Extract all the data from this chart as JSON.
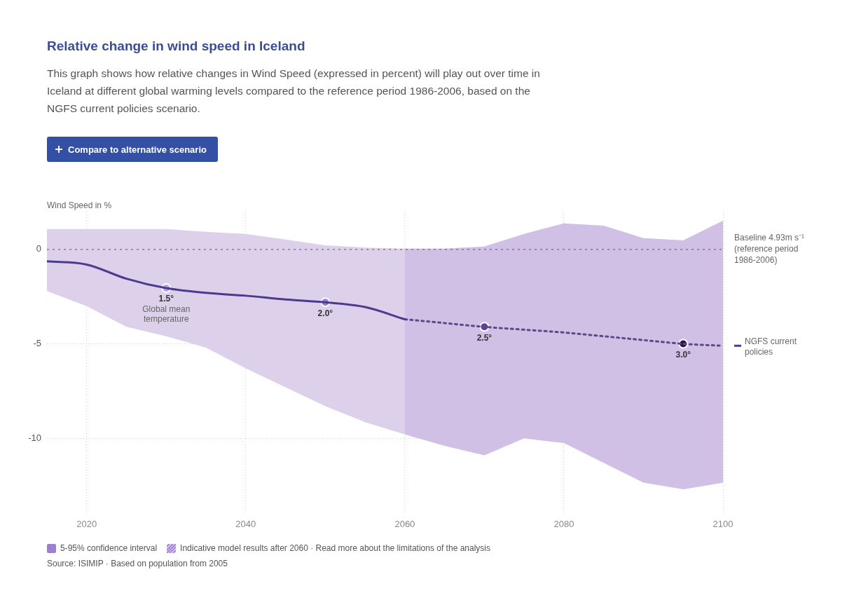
{
  "chart_data": {
    "type": "line",
    "title": "Relative change in wind speed in Iceland",
    "subtitle": "This graph shows how relative changes in Wind Speed (expressed in percent) will play out over time in Iceland at different global warming levels compared to the reference period 1986-2006, based on the NGFS current policies scenario.",
    "ylabel": "Wind Speed in %",
    "x": [
      2015,
      2020,
      2025,
      2030,
      2035,
      2040,
      2045,
      2050,
      2055,
      2060,
      2065,
      2070,
      2075,
      2080,
      2085,
      2090,
      2095,
      2100
    ],
    "series": [
      {
        "name": "NGFS current policies",
        "type": "line",
        "color": "#4b3a8f",
        "line_style": "solid",
        "values": [
          -0.63,
          -0.8,
          -1.55,
          -2.05,
          -2.3,
          -2.45,
          -2.65,
          -2.8,
          -3.05,
          -3.7,
          null,
          null,
          null,
          null,
          null,
          null,
          null,
          null
        ],
        "upper": [
          1.08,
          1.08,
          1.08,
          1.08,
          0.93,
          0.82,
          0.52,
          0.22,
          0.1,
          0.04,
          0.04,
          0.15,
          0.82,
          1.38,
          1.26,
          0.6,
          0.48,
          1.52
        ],
        "lower": [
          -2.2,
          -3.0,
          -4.1,
          -4.6,
          -5.2,
          -6.3,
          -7.3,
          -8.3,
          -9.15,
          -9.8,
          -10.4,
          -10.9,
          -10.0,
          -10.25,
          -11.3,
          -12.35,
          -12.7,
          -12.35
        ]
      },
      {
        "type": "line",
        "color": "#5a4a8a",
        "line_style": "dotted",
        "values": [
          null,
          null,
          null,
          null,
          null,
          null,
          null,
          null,
          null,
          -3.7,
          -3.9,
          -4.1,
          -4.25,
          -4.4,
          -4.6,
          -4.8,
          -5.0,
          -5.1
        ]
      },
      {
        "type": "scatter",
        "marker": "circle",
        "x": [
          2030,
          2050,
          2070,
          2095
        ],
        "values": [
          -2.05,
          -2.8,
          -4.1,
          -5.0
        ],
        "colors": [
          "#b9a5e6",
          "#9a7fd0",
          "#5e3f99",
          "#32124f"
        ]
      }
    ],
    "xlim": [
      2015,
      2100
    ],
    "xticks": [
      2020,
      2040,
      2060,
      2080,
      2100
    ],
    "ylim": [
      -14,
      2
    ],
    "yticks": [
      -10,
      -5,
      0
    ],
    "grid": true,
    "legend": "right",
    "ref_lines": [
      {
        "axis": "y",
        "value": 0,
        "label": "Baseline 4.93m s⁻¹ (reference period 1986-2006)",
        "color": "#555555",
        "line_style": "dotted"
      }
    ],
    "bands": [
      {
        "axis": "x",
        "from": 2060,
        "to": 2100,
        "label": "Indicative model results after 2060 · Read more about the limitations of the analysis",
        "color": "#c4b0e0"
      }
    ],
    "annotations": [
      "Compare to alternative scenario",
      "5-95% confidence interval",
      "Source: ISIMIP · Based on population from 2005",
      {
        "text": "1.5°",
        "x": 2030,
        "y": -2.05
      },
      {
        "text": "Global mean temperature",
        "x": 2030,
        "y": -2.05
      },
      {
        "text": "2.0°",
        "x": 2050,
        "y": -2.8
      },
      {
        "text": "2.5°",
        "x": 2070,
        "y": -4.1
      },
      {
        "text": "3.0°",
        "x": 2095,
        "y": -5.0
      }
    ]
  }
}
